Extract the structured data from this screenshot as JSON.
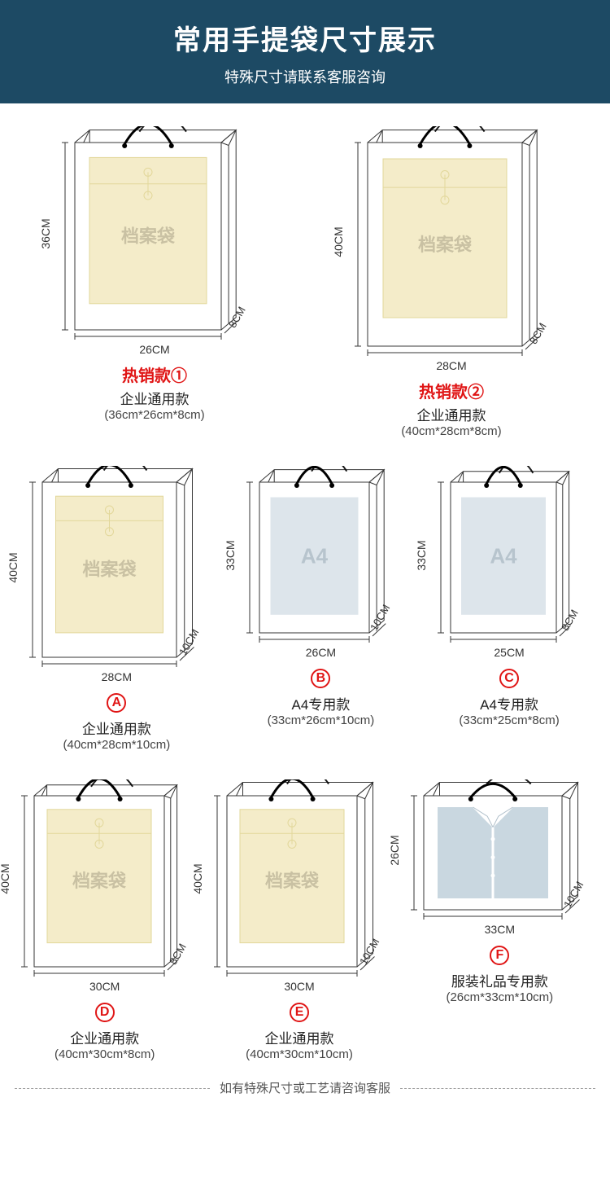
{
  "colors": {
    "header_bg": "#1d4a64",
    "hot_red": "#e01515",
    "stroke": "#363636",
    "envelope": "#f4ecc9",
    "envelope_dark": "#e2d79a",
    "a4_fill": "#dde5eb",
    "shirt": "#c9d7e0"
  },
  "header": {
    "title": "常用手提袋尺寸展示",
    "subtitle": "特殊尺寸请联系客服咨询"
  },
  "footer": "如有特殊尺寸或工艺请咨询客服",
  "row1": [
    {
      "h": "36CM",
      "w": "26CM",
      "d": "8CM",
      "hot": "热销款①",
      "name": "企业通用款",
      "size": "(36cm*26cm*8cm)",
      "insert": "envelope",
      "bag_w": 180,
      "bag_h": 230,
      "dep": 28
    },
    {
      "h": "40CM",
      "w": "28CM",
      "d": "8CM",
      "hot": "热销款②",
      "name": "企业通用款",
      "size": "(40cm*28cm*8cm)",
      "insert": "envelope",
      "bag_w": 190,
      "bag_h": 250,
      "dep": 28
    }
  ],
  "row2": [
    {
      "h": "40CM",
      "w": "28CM",
      "d": "10CM",
      "badge": "A",
      "name": "企业通用款",
      "size": "(40cm*28cm*10cm)",
      "insert": "envelope",
      "bag_w": 165,
      "bag_h": 215,
      "dep": 30
    },
    {
      "h": "33CM",
      "w": "26CM",
      "d": "10CM",
      "badge": "B",
      "name": "A4专用款",
      "size": "(33cm*26cm*10cm)",
      "insert": "a4",
      "bag_w": 135,
      "bag_h": 185,
      "dep": 28
    },
    {
      "h": "33CM",
      "w": "25CM",
      "d": "8CM",
      "badge": "C",
      "name": "A4专用款",
      "size": "(33cm*25cm*8cm)",
      "insert": "a4",
      "bag_w": 130,
      "bag_h": 185,
      "dep": 24
    }
  ],
  "row3": [
    {
      "h": "40CM",
      "w": "30CM",
      "d": "8CM",
      "badge": "D",
      "name": "企业通用款",
      "size": "(40cm*30cm*8cm)",
      "insert": "envelope",
      "bag_w": 160,
      "bag_h": 210,
      "dep": 24
    },
    {
      "h": "40CM",
      "w": "30CM",
      "d": "10CM",
      "badge": "E",
      "name": "企业通用款",
      "size": "(40cm*30cm*10cm)",
      "insert": "envelope",
      "bag_w": 160,
      "bag_h": 210,
      "dep": 30
    },
    {
      "h": "26CM",
      "w": "33CM",
      "d": "10CM",
      "badge": "F",
      "name": "服装礼品专用款",
      "size": "(26cm*33cm*10cm)",
      "insert": "shirt",
      "bag_w": 170,
      "bag_h": 140,
      "dep": 30
    }
  ]
}
